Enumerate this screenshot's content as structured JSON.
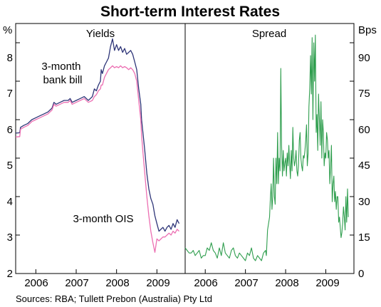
{
  "chart_data": {
    "title": "Short-term Interest Rates",
    "source": "Sources: RBA; Tullett Prebon (Australia) Pty Ltd",
    "colors": {
      "bank_bill": "#2e3578",
      "ois": "#ec6fb2",
      "spread": "#2f9e4e"
    },
    "panels": [
      {
        "type": "line",
        "title": "Yields",
        "ylabel": "%",
        "ylim": [
          2,
          8.5
        ],
        "yticks": [
          "2",
          "3",
          "4",
          "5",
          "6",
          "7",
          "8"
        ],
        "xlim": [
          2005.5,
          2009.7
        ],
        "xticks": [
          "2006",
          "2007",
          "2008",
          "2009"
        ],
        "grid": false,
        "series": [
          {
            "name": "3-month bank bill",
            "label_lines": [
              "3-month",
              "bank bill"
            ],
            "x": [
              2005.5,
              2005.6,
              2005.62,
              2005.7,
              2005.8,
              2005.9,
              2006.0,
              2006.1,
              2006.2,
              2006.3,
              2006.4,
              2006.45,
              2006.5,
              2006.6,
              2006.7,
              2006.8,
              2006.85,
              2006.9,
              2007.0,
              2007.1,
              2007.2,
              2007.3,
              2007.4,
              2007.45,
              2007.5,
              2007.55,
              2007.6,
              2007.62,
              2007.65,
              2007.7,
              2007.75,
              2007.8,
              2007.85,
              2007.9,
              2007.95,
              2008.0,
              2008.05,
              2008.1,
              2008.15,
              2008.2,
              2008.25,
              2008.3,
              2008.35,
              2008.4,
              2008.45,
              2008.5,
              2008.55,
              2008.6,
              2008.62,
              2008.65,
              2008.7,
              2008.75,
              2008.8,
              2008.85,
              2008.9,
              2008.95,
              2009.0,
              2009.05,
              2009.1,
              2009.15,
              2009.2,
              2009.25,
              2009.3,
              2009.35,
              2009.4,
              2009.45,
              2009.5,
              2009.55
            ],
            "values": [
              5.65,
              5.66,
              5.8,
              5.85,
              5.9,
              6.0,
              6.05,
              6.1,
              6.15,
              6.2,
              6.3,
              6.45,
              6.4,
              6.45,
              6.5,
              6.5,
              6.55,
              6.45,
              6.5,
              6.55,
              6.6,
              6.5,
              6.6,
              6.8,
              6.75,
              6.9,
              7.0,
              7.3,
              7.2,
              7.4,
              7.5,
              7.6,
              7.9,
              8.1,
              7.8,
              7.95,
              7.8,
              7.9,
              7.75,
              7.85,
              7.7,
              7.75,
              7.8,
              7.7,
              7.5,
              7.3,
              6.8,
              6.4,
              6.0,
              5.7,
              5.2,
              4.6,
              4.2,
              3.95,
              3.8,
              3.5,
              3.3,
              3.1,
              3.15,
              3.2,
              3.1,
              3.2,
              3.25,
              3.15,
              3.3,
              3.2,
              3.4,
              3.3
            ]
          },
          {
            "name": "3-month OIS",
            "label_lines": [
              "3-month OIS"
            ],
            "x": [
              2005.5,
              2005.6,
              2005.62,
              2005.7,
              2005.8,
              2005.9,
              2006.0,
              2006.1,
              2006.2,
              2006.3,
              2006.4,
              2006.45,
              2006.5,
              2006.6,
              2006.7,
              2006.8,
              2006.85,
              2006.9,
              2007.0,
              2007.1,
              2007.2,
              2007.3,
              2007.4,
              2007.45,
              2007.5,
              2007.55,
              2007.6,
              2007.62,
              2007.65,
              2007.7,
              2007.75,
              2007.8,
              2007.85,
              2007.9,
              2007.95,
              2008.0,
              2008.05,
              2008.1,
              2008.15,
              2008.2,
              2008.25,
              2008.3,
              2008.35,
              2008.4,
              2008.45,
              2008.5,
              2008.55,
              2008.6,
              2008.62,
              2008.65,
              2008.7,
              2008.75,
              2008.8,
              2008.85,
              2008.9,
              2008.95,
              2009.0,
              2009.05,
              2009.1,
              2009.15,
              2009.2,
              2009.25,
              2009.3,
              2009.35,
              2009.4,
              2009.45,
              2009.5,
              2009.55
            ],
            "values": [
              5.55,
              5.56,
              5.75,
              5.8,
              5.85,
              5.95,
              6.0,
              6.05,
              6.1,
              6.15,
              6.25,
              6.4,
              6.35,
              6.4,
              6.45,
              6.45,
              6.5,
              6.4,
              6.45,
              6.5,
              6.55,
              6.45,
              6.5,
              6.6,
              6.65,
              6.75,
              6.8,
              6.9,
              6.9,
              7.1,
              7.2,
              7.3,
              7.35,
              7.4,
              7.35,
              7.38,
              7.35,
              7.4,
              7.35,
              7.38,
              7.35,
              7.3,
              7.35,
              7.3,
              7.2,
              7.0,
              6.5,
              6.0,
              5.6,
              5.2,
              4.6,
              4.0,
              3.5,
              3.1,
              2.8,
              2.55,
              2.9,
              2.85,
              2.9,
              2.95,
              2.95,
              3.0,
              3.05,
              3.0,
              3.1,
              3.05,
              3.15,
              3.1
            ]
          }
        ]
      },
      {
        "type": "line",
        "title": "Spread",
        "ylabel": "Bps",
        "ylim": [
          0,
          97.5
        ],
        "yticks": [
          "0",
          "15",
          "30",
          "45",
          "60",
          "75",
          "90"
        ],
        "xlim": [
          2005.5,
          2009.7
        ],
        "xticks": [
          "2006",
          "2007",
          "2008",
          "2009"
        ],
        "grid": false,
        "series": [
          {
            "x": [
              2005.5,
              2005.55,
              2005.6,
              2005.65,
              2005.7,
              2005.75,
              2005.8,
              2005.85,
              2005.9,
              2005.95,
              2006.0,
              2006.05,
              2006.1,
              2006.15,
              2006.2,
              2006.25,
              2006.3,
              2006.35,
              2006.4,
              2006.45,
              2006.5,
              2006.55,
              2006.6,
              2006.65,
              2006.7,
              2006.75,
              2006.8,
              2006.85,
              2006.9,
              2006.95,
              2007.0,
              2007.05,
              2007.1,
              2007.15,
              2007.2,
              2007.25,
              2007.3,
              2007.35,
              2007.4,
              2007.45,
              2007.5,
              2007.52,
              2007.55,
              2007.58,
              2007.6,
              2007.62,
              2007.64,
              2007.66,
              2007.68,
              2007.7,
              2007.72,
              2007.74,
              2007.76,
              2007.78,
              2007.8,
              2007.82,
              2007.84,
              2007.86,
              2007.88,
              2007.9,
              2007.92,
              2007.94,
              2007.96,
              2007.98,
              2008.0,
              2008.02,
              2008.04,
              2008.06,
              2008.08,
              2008.1,
              2008.12,
              2008.14,
              2008.16,
              2008.18,
              2008.2,
              2008.22,
              2008.24,
              2008.26,
              2008.28,
              2008.3,
              2008.32,
              2008.34,
              2008.36,
              2008.38,
              2008.4,
              2008.42,
              2008.44,
              2008.46,
              2008.48,
              2008.5,
              2008.52,
              2008.54,
              2008.56,
              2008.58,
              2008.6,
              2008.62,
              2008.64,
              2008.66,
              2008.68,
              2008.7,
              2008.72,
              2008.74,
              2008.76,
              2008.78,
              2008.8,
              2008.82,
              2008.84,
              2008.86,
              2008.88,
              2008.9,
              2008.92,
              2008.94,
              2008.96,
              2008.98,
              2009.0,
              2009.02,
              2009.04,
              2009.06,
              2009.08,
              2009.1,
              2009.12,
              2009.14,
              2009.16,
              2009.18,
              2009.2,
              2009.22,
              2009.24,
              2009.26,
              2009.28,
              2009.3,
              2009.32,
              2009.34,
              2009.36,
              2009.38,
              2009.4,
              2009.42,
              2009.44,
              2009.46,
              2009.48,
              2009.5,
              2009.52,
              2009.54,
              2009.56
            ],
            "values": [
              10,
              9,
              8,
              8,
              9,
              7,
              8,
              9,
              6,
              7,
              7,
              10,
              9,
              12,
              9,
              8,
              6,
              10,
              7,
              12,
              8,
              7,
              6,
              9,
              10,
              7,
              6,
              8,
              7,
              6,
              5,
              8,
              7,
              10,
              6,
              5,
              7,
              6,
              5,
              8,
              9,
              7,
              17,
              20,
              22,
              29,
              35,
              25,
              30,
              45,
              30,
              27,
              45,
              35,
              55,
              35,
              45,
              40,
              80,
              50,
              38,
              48,
              40,
              43,
              45,
              38,
              47,
              42,
              50,
              43,
              37,
              48,
              40,
              57,
              45,
              42,
              44,
              48,
              40,
              38,
              42,
              52,
              55,
              45,
              42,
              40,
              46,
              45,
              48,
              52,
              58,
              42,
              47,
              65,
              72,
              85,
              70,
              92,
              60,
              90,
              75,
              93,
              55,
              62,
              48,
              70,
              60,
              50,
              67,
              45,
              60,
              55,
              42,
              47,
              45,
              55,
              52,
              45,
              48,
              35,
              42,
              50,
              28,
              35,
              38,
              28,
              32,
              25,
              30,
              30,
              20,
              22,
              18,
              14,
              16,
              20,
              26,
              22,
              17,
              30,
              20,
              33,
              22
            ]
          }
        ]
      }
    ]
  }
}
